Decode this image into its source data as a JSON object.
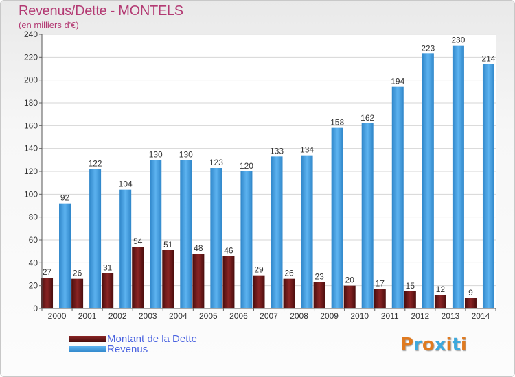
{
  "header": {
    "title": "Revenus/Dette - MONTELS",
    "subtitle": "(en milliers d'€)"
  },
  "legend": {
    "items": [
      {
        "label": "Montant de la Dette",
        "color": "#6b1a1a"
      },
      {
        "label": "Revenus",
        "color": "#4aa3e6"
      }
    ]
  },
  "logo": {
    "text": "Proxiti",
    "colors": [
      "#e07a1f",
      "#3da8dc",
      "#e07a1f",
      "#3da8dc",
      "#e07a1f",
      "#3da8dc",
      "#e07a1f"
    ]
  },
  "chart_data": {
    "type": "bar",
    "title": "Revenus/Dette - MONTELS",
    "subtitle": "(en milliers d'€)",
    "categories": [
      "2000",
      "2001",
      "2002",
      "2003",
      "2004",
      "2005",
      "2006",
      "2007",
      "2008",
      "2009",
      "2010",
      "2011",
      "2012",
      "2013",
      "2014"
    ],
    "series": [
      {
        "name": "Montant de la Dette",
        "color": "#7a1f1f",
        "values": [
          27,
          26,
          31,
          54,
          51,
          48,
          46,
          29,
          26,
          23,
          20,
          17,
          15,
          12,
          9
        ]
      },
      {
        "name": "Revenus",
        "color": "#4aa3e6",
        "values": [
          92,
          122,
          104,
          130,
          130,
          123,
          120,
          133,
          134,
          158,
          162,
          194,
          223,
          230,
          214
        ]
      }
    ],
    "ylim": [
      0,
      240
    ],
    "yticks": [
      0,
      20,
      40,
      60,
      80,
      100,
      120,
      140,
      160,
      180,
      200,
      220,
      240
    ],
    "grid": true,
    "legend_position": "bottom-left"
  }
}
